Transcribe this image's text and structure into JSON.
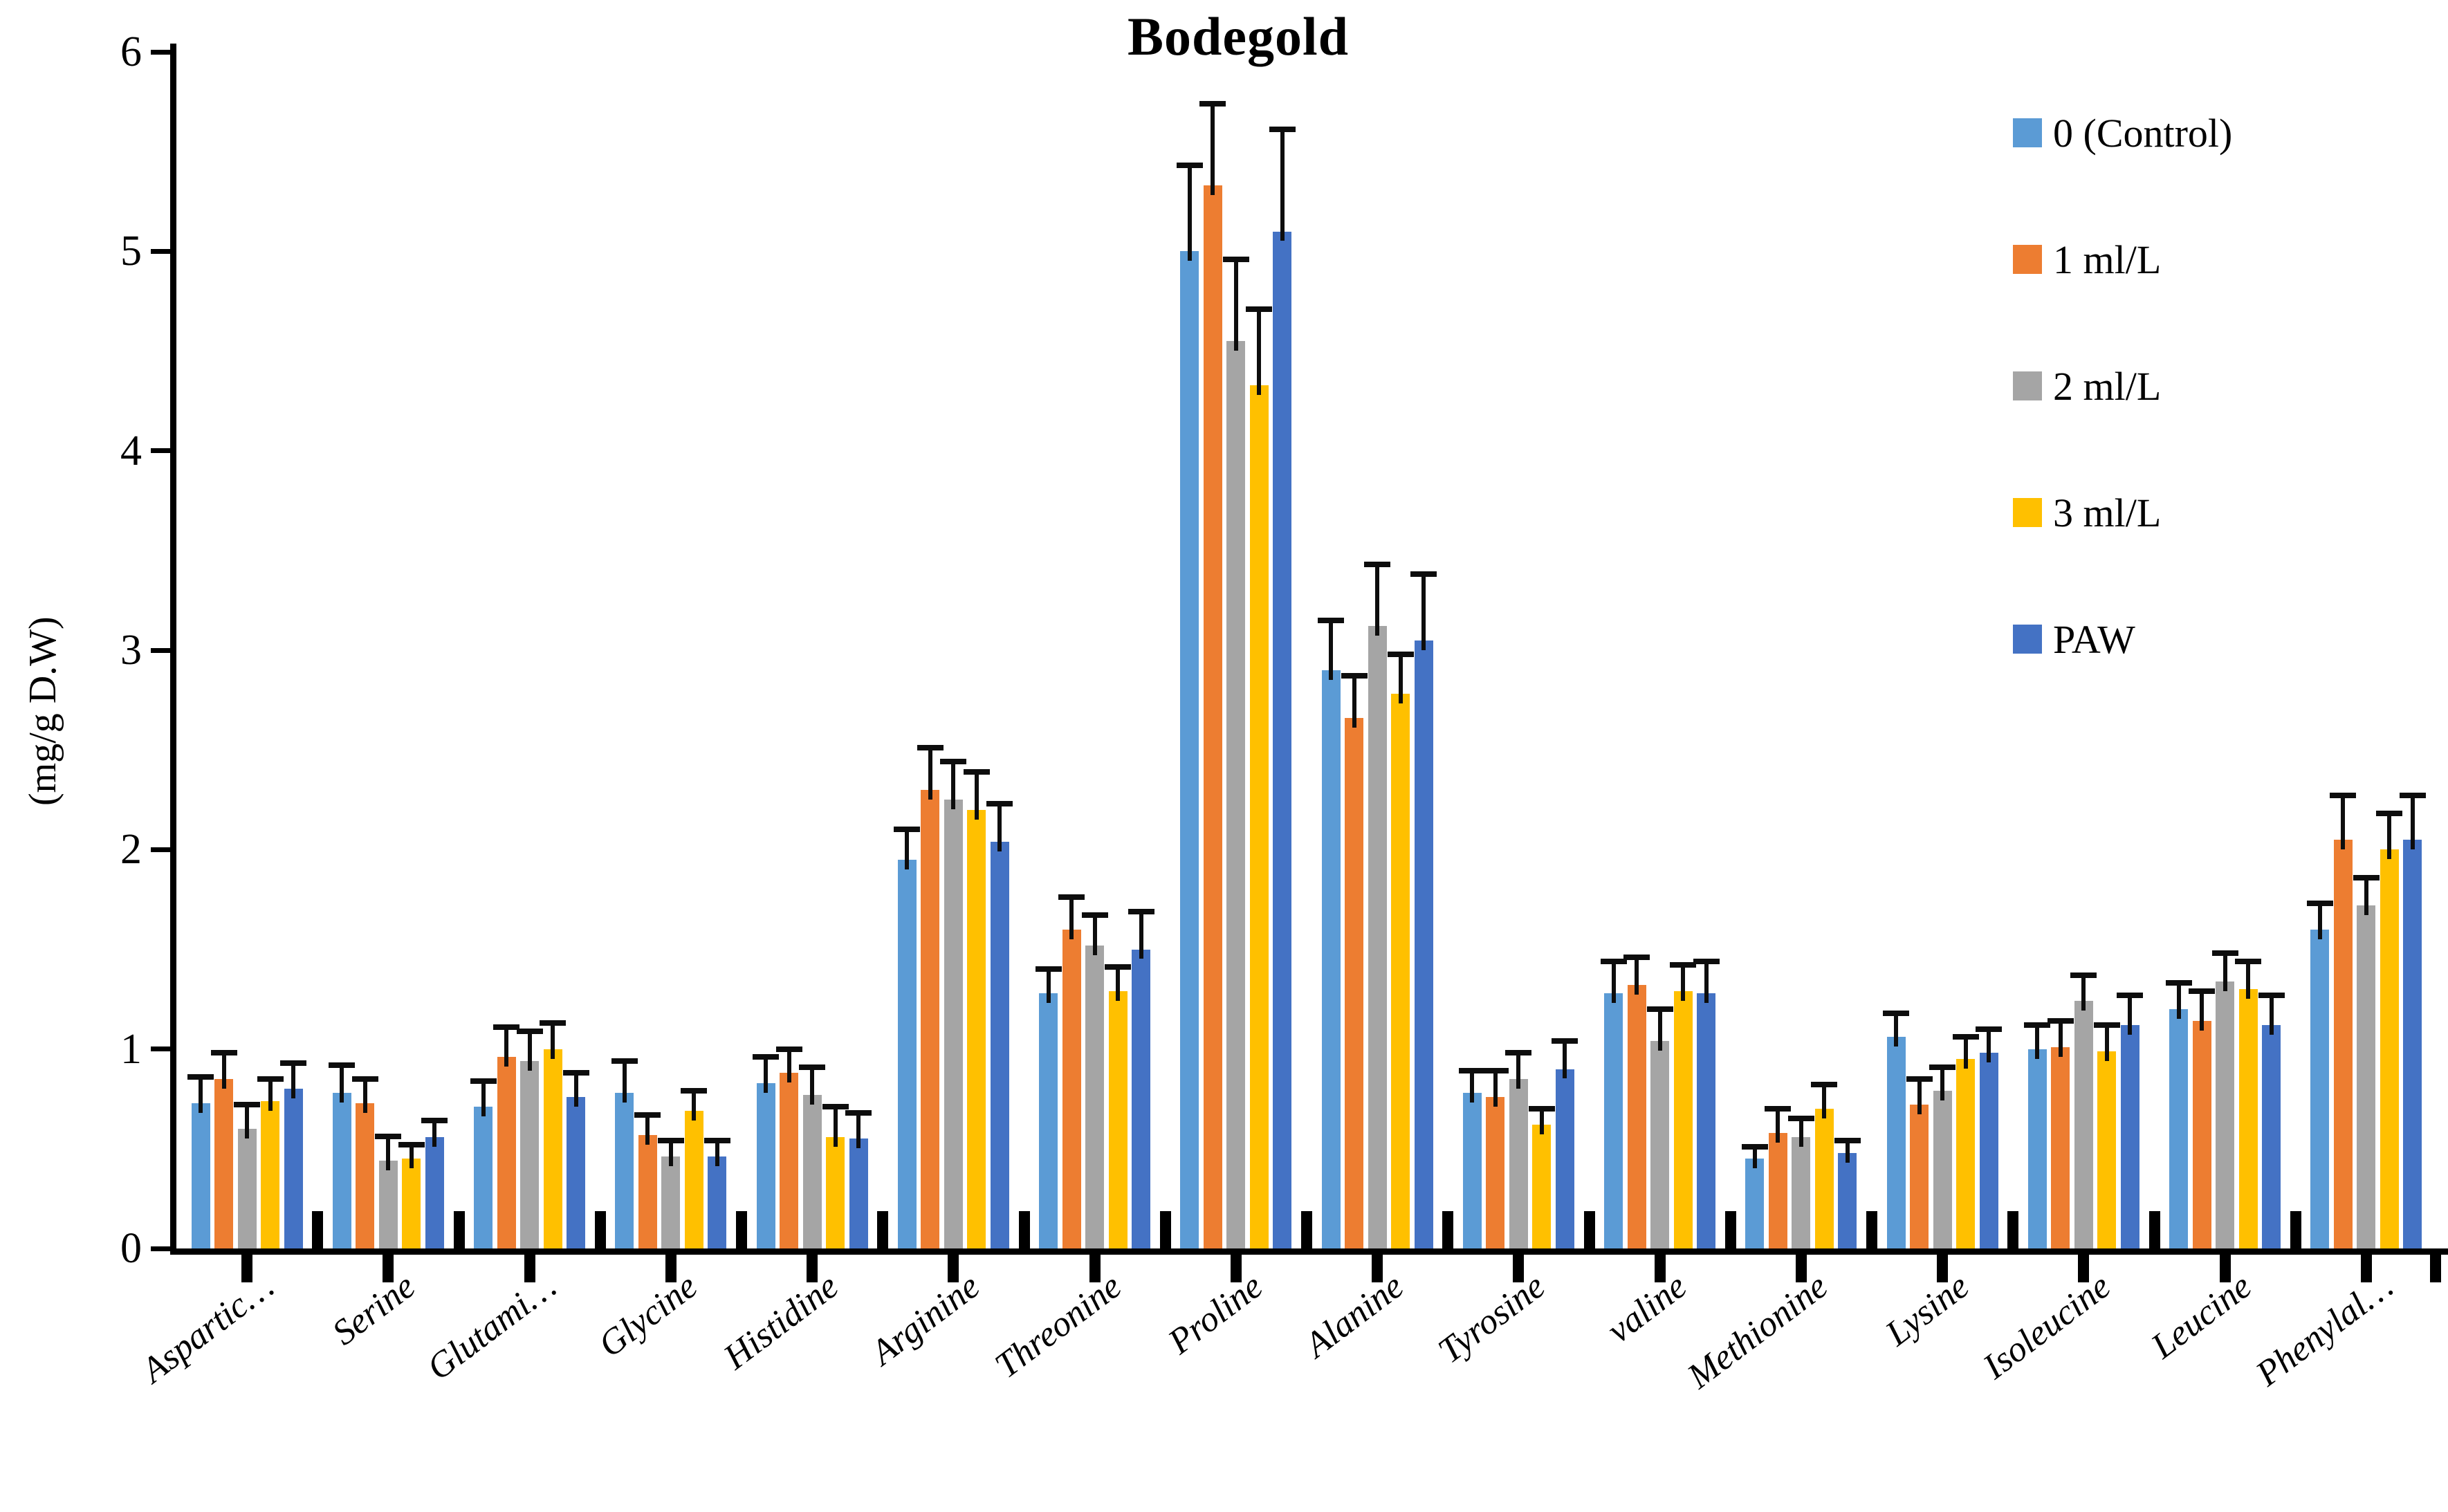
{
  "title": "Bodegold",
  "y_axis": {
    "label": "(mg/g D.W)",
    "min": 0,
    "max": 6,
    "tick_step": 1,
    "tick_labels": [
      "0",
      "1",
      "2",
      "3",
      "4",
      "5",
      "6"
    ]
  },
  "x_axis": {
    "label_style": "rotated-italic",
    "truncated_labels": [
      "Aspartic…",
      "Glutami…",
      "Phenylal…"
    ]
  },
  "legend": {
    "position": "top-right",
    "labels": [
      "0 (Control)",
      "1 ml/L",
      "2 ml/L",
      "3 ml/L",
      "PAW"
    ]
  },
  "chart_data": {
    "type": "bar",
    "title": "Bodegold",
    "xlabel": "",
    "ylabel": "(mg/g D.W)",
    "ylim": [
      0,
      6
    ],
    "grid": false,
    "legend_position": "top-right",
    "error_bars": "upper",
    "categories": [
      "Aspartic…",
      "Serine",
      "Glutami…",
      "Glycine",
      "Histidine",
      "Arginine",
      "Threonine",
      "Proline",
      "Alanine",
      "Tyrosine",
      "valine",
      "Methionine",
      "Lysine",
      "Isoleucine",
      "Leucine",
      "Phenylal…"
    ],
    "series": [
      {
        "name": "0 (Control)",
        "color": "#5B9BD5",
        "values": [
          0.73,
          0.78,
          0.71,
          0.78,
          0.83,
          1.95,
          1.28,
          5.0,
          2.9,
          0.78,
          1.28,
          0.45,
          1.06,
          1.0,
          1.2,
          1.6
        ],
        "errors": [
          0.12,
          0.13,
          0.12,
          0.15,
          0.12,
          0.14,
          0.11,
          0.42,
          0.24,
          0.1,
          0.15,
          0.05,
          0.11,
          0.11,
          0.12,
          0.12
        ]
      },
      {
        "name": "1 ml/L",
        "color": "#ED7D31",
        "values": [
          0.85,
          0.73,
          0.96,
          0.57,
          0.88,
          2.3,
          1.6,
          5.33,
          2.66,
          0.76,
          1.32,
          0.58,
          0.72,
          1.01,
          1.14,
          2.05
        ],
        "errors": [
          0.12,
          0.11,
          0.14,
          0.09,
          0.11,
          0.2,
          0.15,
          0.4,
          0.2,
          0.12,
          0.13,
          0.11,
          0.12,
          0.12,
          0.14,
          0.21
        ]
      },
      {
        "name": "2 ml/L",
        "color": "#A5A5A5",
        "values": [
          0.6,
          0.44,
          0.94,
          0.46,
          0.77,
          2.25,
          1.52,
          4.55,
          3.12,
          0.85,
          1.04,
          0.56,
          0.79,
          1.24,
          1.34,
          1.72
        ],
        "errors": [
          0.11,
          0.11,
          0.14,
          0.07,
          0.13,
          0.18,
          0.14,
          0.4,
          0.3,
          0.12,
          0.15,
          0.08,
          0.11,
          0.12,
          0.13,
          0.13
        ]
      },
      {
        "name": "3 ml/L",
        "color": "#FFC000",
        "values": [
          0.74,
          0.45,
          1.0,
          0.69,
          0.56,
          2.2,
          1.29,
          4.33,
          2.78,
          0.62,
          1.29,
          0.7,
          0.95,
          0.99,
          1.3,
          2.0
        ],
        "errors": [
          0.1,
          0.06,
          0.12,
          0.09,
          0.14,
          0.18,
          0.11,
          0.37,
          0.19,
          0.07,
          0.12,
          0.11,
          0.1,
          0.12,
          0.13,
          0.17
        ]
      },
      {
        "name": "PAW",
        "color": "#4472C4",
        "values": [
          0.8,
          0.56,
          0.76,
          0.46,
          0.55,
          2.04,
          1.5,
          5.1,
          3.05,
          0.9,
          1.28,
          0.48,
          0.98,
          1.12,
          1.12,
          2.05
        ],
        "errors": [
          0.12,
          0.07,
          0.11,
          0.07,
          0.12,
          0.18,
          0.18,
          0.5,
          0.32,
          0.13,
          0.15,
          0.05,
          0.11,
          0.14,
          0.14,
          0.21
        ]
      }
    ]
  }
}
